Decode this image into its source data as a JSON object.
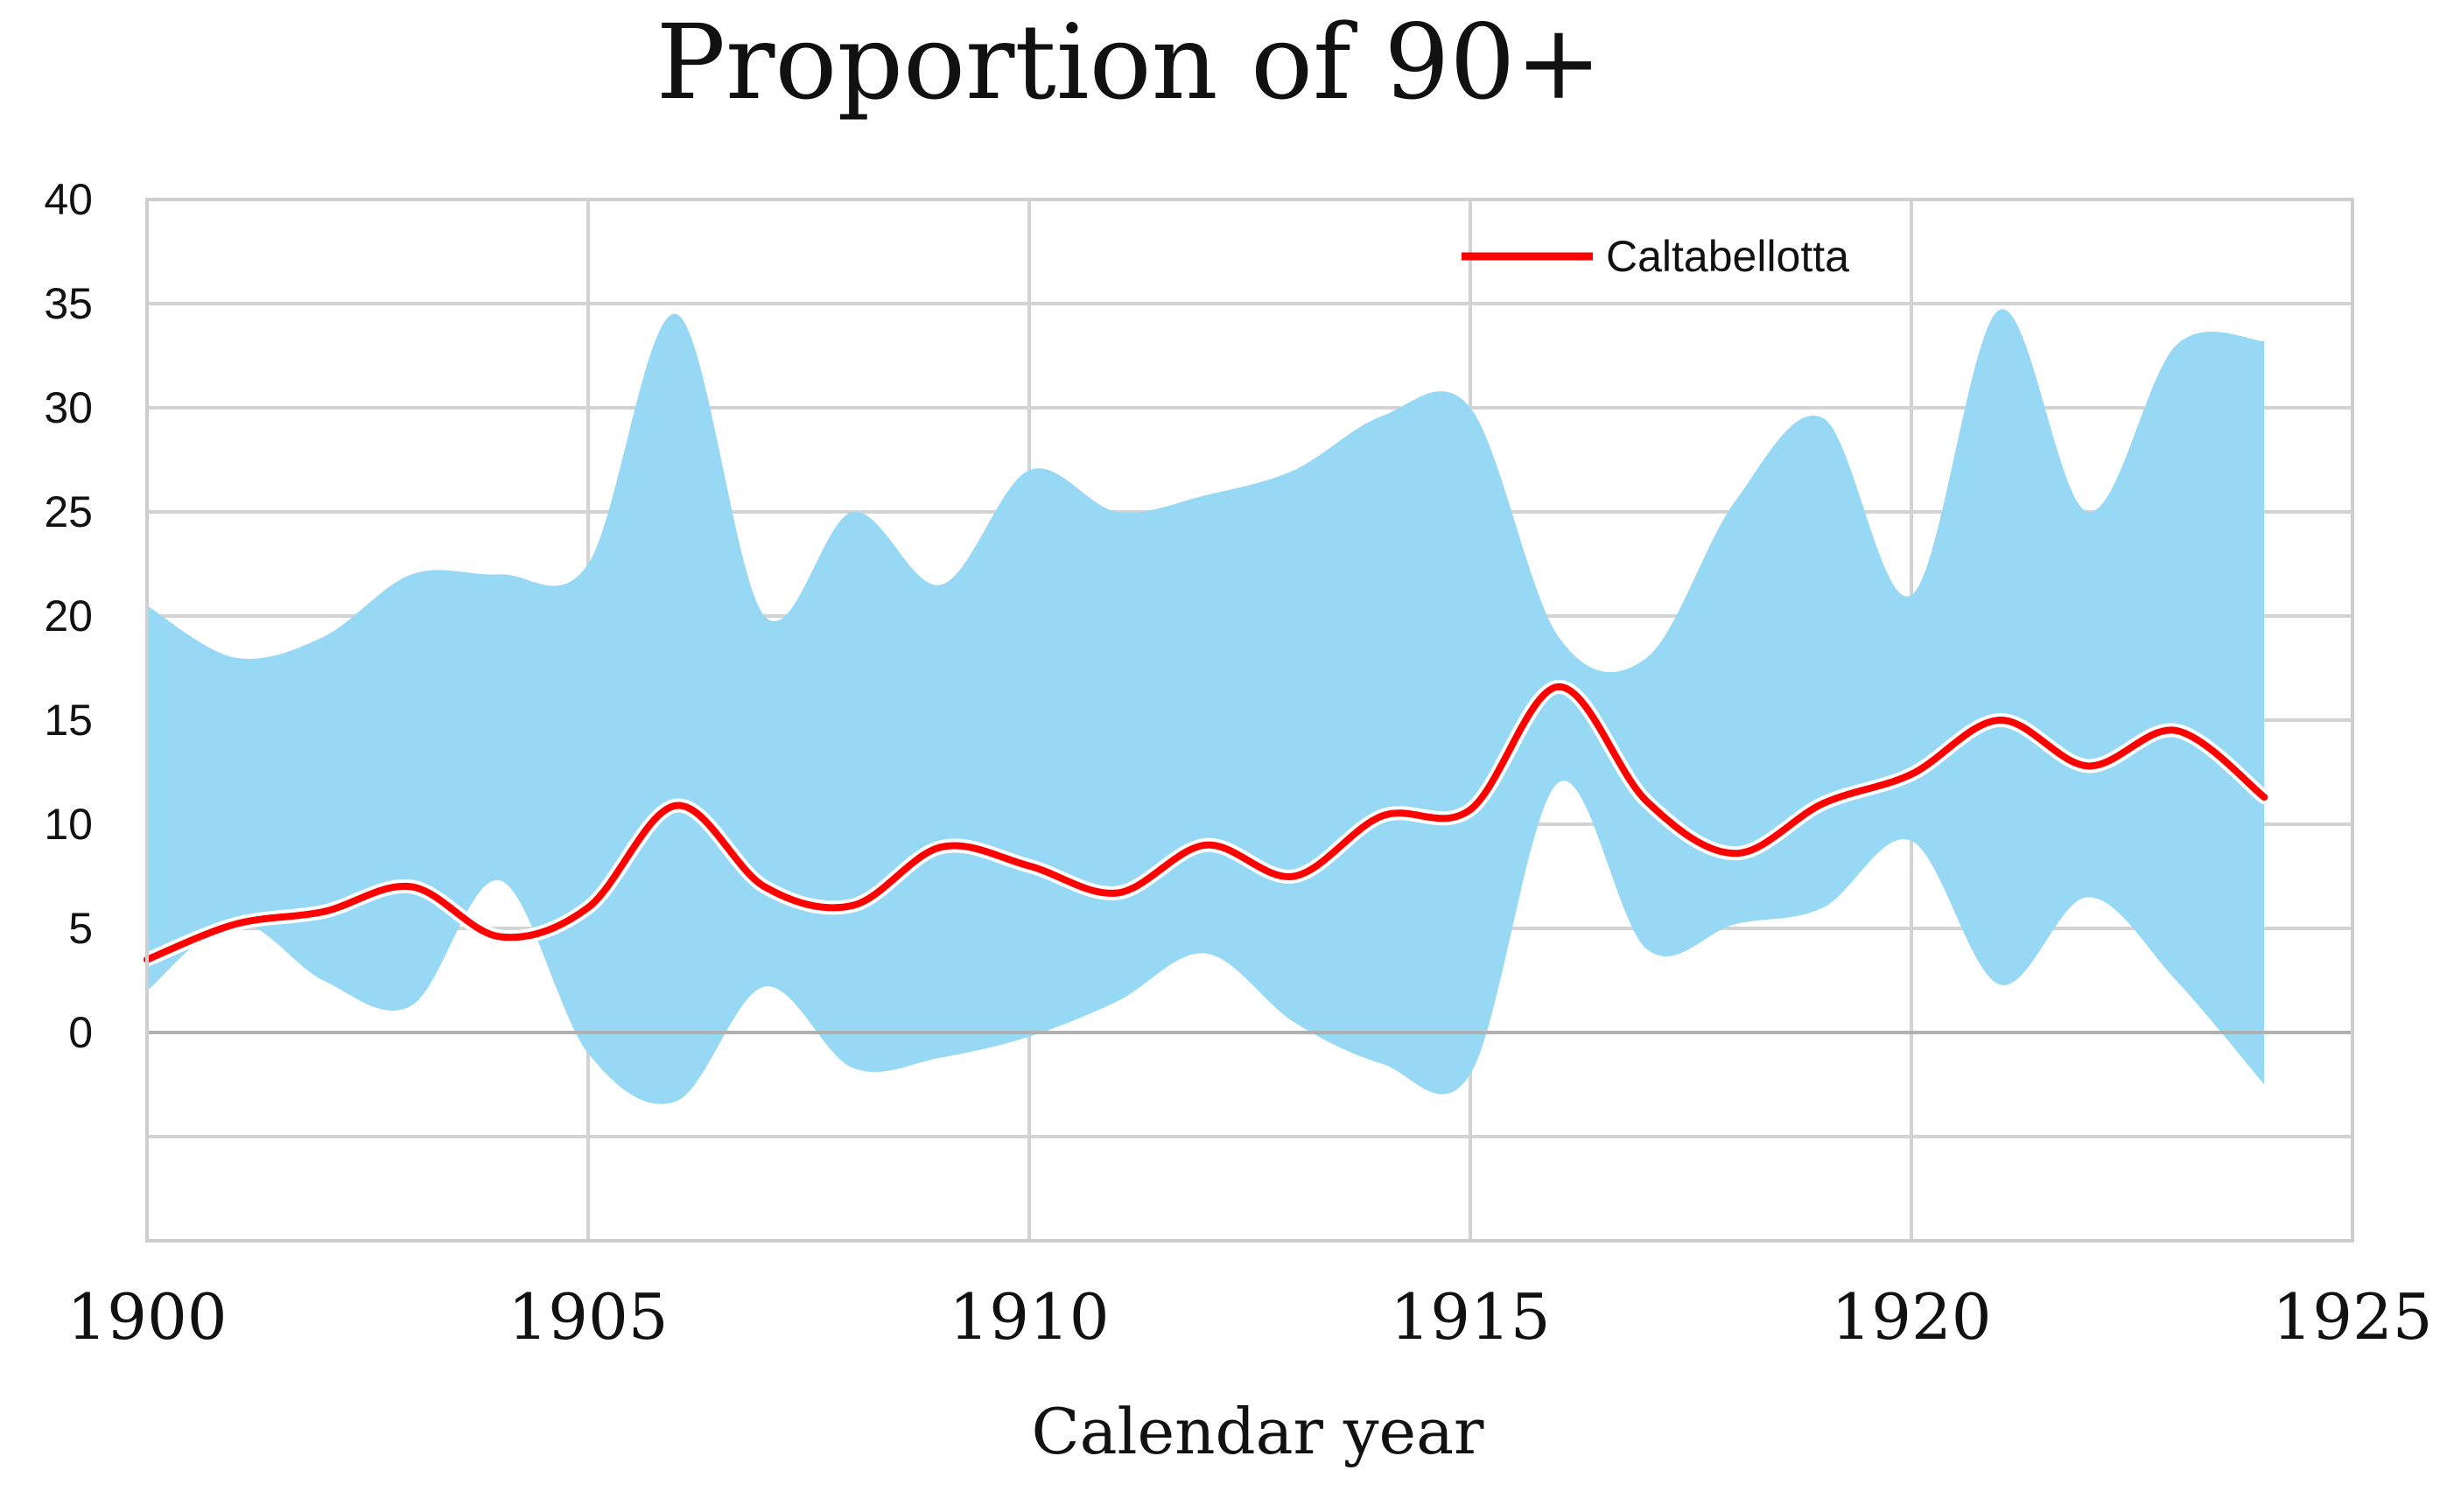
{
  "chart_data": {
    "type": "line",
    "title": "Proportion of 90+",
    "xlabel": "Calendar year",
    "ylabel": "",
    "xlim": [
      1900,
      1925
    ],
    "ylim": [
      -10,
      40
    ],
    "x_ticks": [
      1900,
      1905,
      1910,
      1915,
      1920,
      1925
    ],
    "y_ticks": [
      {
        "value": 40,
        "label": "40"
      },
      {
        "value": 35,
        "label": "35"
      },
      {
        "value": 30,
        "label": "30"
      },
      {
        "value": 25,
        "label": "25"
      },
      {
        "value": 20,
        "label": "20"
      },
      {
        "value": 15,
        "label": "15"
      },
      {
        "value": 10,
        "label": "10"
      },
      {
        "value": 5,
        "label": "5"
      },
      {
        "value": 0,
        "label": "0"
      },
      {
        "value": -5,
        "label": ""
      },
      {
        "value": -10,
        "label": ""
      }
    ],
    "grid": true,
    "legend_position": "top-right",
    "x": [
      1900,
      1901,
      1902,
      1903,
      1904,
      1905,
      1906,
      1907,
      1908,
      1909,
      1910,
      1911,
      1912,
      1913,
      1914,
      1915,
      1916,
      1917,
      1918,
      1919,
      1920,
      1921,
      1922,
      1923,
      1924
    ],
    "series": [
      {
        "name": "Caltabellotta",
        "color": "#ff0000",
        "values": [
          3.5,
          5.2,
          5.8,
          7.0,
          4.6,
          6.0,
          10.9,
          7.0,
          6.1,
          8.9,
          8.0,
          6.7,
          9.0,
          7.5,
          10.4,
          10.7,
          16.6,
          11.1,
          8.6,
          11.0,
          12.4,
          15.0,
          12.8,
          14.5,
          11.3
        ]
      }
    ],
    "band": {
      "color": "#97d8f5",
      "upper": [
        20.5,
        18.0,
        19.0,
        22.0,
        22.0,
        22.5,
        34.5,
        20.0,
        25.0,
        21.5,
        27.0,
        25.0,
        25.8,
        27.0,
        29.6,
        30.0,
        19.0,
        18.0,
        25.5,
        29.5,
        21.0,
        34.7,
        25.0,
        33.0,
        33.2
      ],
      "lower": [
        2.0,
        5.3,
        2.5,
        1.3,
        7.3,
        -1.0,
        -3.3,
        2.2,
        -1.7,
        -1.2,
        -0.2,
        1.5,
        3.8,
        0.5,
        -1.5,
        -2.0,
        12.0,
        4.0,
        5.2,
        6.0,
        9.2,
        2.3,
        6.5,
        2.5,
        -2.5
      ]
    }
  }
}
